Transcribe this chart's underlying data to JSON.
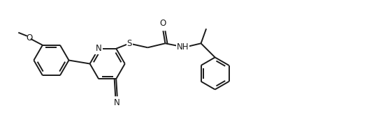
{
  "background_color": "#ffffff",
  "line_color": "#1a1a1a",
  "line_width": 1.4,
  "font_size": 8.5,
  "figsize": [
    5.28,
    1.78
  ],
  "dpi": 100,
  "xlim": [
    0.0,
    10.5
  ],
  "ylim": [
    0.8,
    4.2
  ]
}
